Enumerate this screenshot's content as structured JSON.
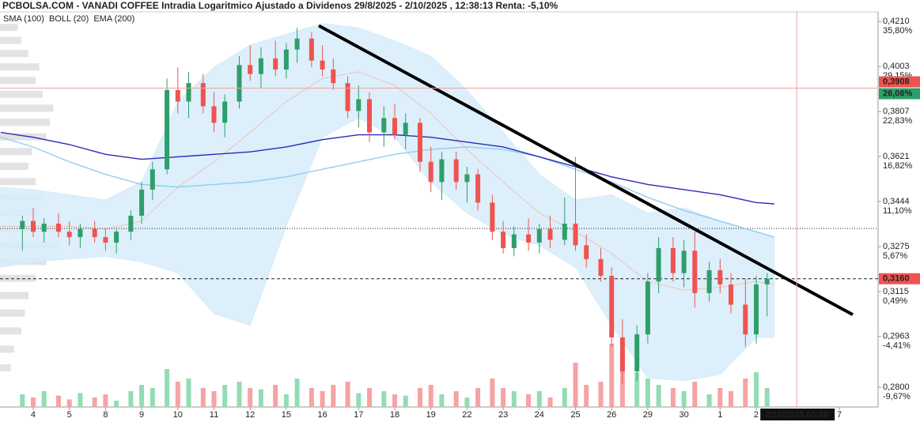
{
  "chart_data": {
    "type": "candlestick",
    "title": "PCBOLSA.COM - VANADI COFFEE Intradia Logaritmico Ajustado a Dividenos 29/8/2025 - 2/10/2025 , 12:38:13 Renta: -5,10%",
    "log_scale": true,
    "xlim": [
      -0.919,
      23.37
    ],
    "ylim": [
      0.2739,
      0.4255
    ],
    "up_color": "#2e9e6a",
    "down_color": "#ef5350",
    "volume_up_color": "#93dcb4",
    "volume_down_color": "#f5a3a3",
    "volume_lim": [
      0,
      100
    ],
    "xticks": [
      {
        "value": 0,
        "label": "4"
      },
      {
        "value": 1,
        "label": "5"
      },
      {
        "value": 2,
        "label": "8"
      },
      {
        "value": 3,
        "label": "9"
      },
      {
        "value": 4,
        "label": "10"
      },
      {
        "value": 5,
        "label": "11"
      },
      {
        "value": 6,
        "label": "12"
      },
      {
        "value": 7,
        "label": "15"
      },
      {
        "value": 8,
        "label": "16"
      },
      {
        "value": 9,
        "label": "17"
      },
      {
        "value": 10,
        "label": "18"
      },
      {
        "value": 11,
        "label": "19"
      },
      {
        "value": 12,
        "label": "22"
      },
      {
        "value": 13,
        "label": "23"
      },
      {
        "value": 14,
        "label": "24"
      },
      {
        "value": 15,
        "label": "25"
      },
      {
        "value": 16,
        "label": "26"
      },
      {
        "value": 17,
        "label": "29"
      },
      {
        "value": 18,
        "label": "30"
      },
      {
        "value": 19,
        "label": "1"
      },
      {
        "value": 20,
        "label": "2"
      },
      {
        "value": 22.3,
        "label": "7"
      }
    ],
    "yticks": [
      {
        "value": 0.421,
        "label": "0,4210",
        "pct": "35,80%"
      },
      {
        "value": 0.4003,
        "label": "0,4003",
        "pct": "29,15%"
      },
      {
        "value": 0.3807,
        "label": "0,3807",
        "pct": "22,83%"
      },
      {
        "value": 0.3621,
        "label": "0,3621",
        "pct": "16,82%"
      },
      {
        "value": 0.3444,
        "label": "0,3444",
        "pct": "11,10%"
      },
      {
        "value": 0.3275,
        "label": "0,3275",
        "pct": "5,67%"
      },
      {
        "value": 0.3115,
        "label": "0,3115",
        "pct": "0,49%"
      },
      {
        "value": 0.2963,
        "label": "0,2963",
        "pct": "-4,41%"
      },
      {
        "value": 0.28,
        "label": "0,2800",
        "pct": "-9,67%"
      }
    ],
    "x": [
      -0.3,
      0,
      0.3,
      0.7,
      1,
      1.3,
      1.7,
      2,
      2.3,
      2.7,
      3,
      3.3,
      3.7,
      4,
      4.3,
      4.7,
      5,
      5.3,
      5.7,
      6,
      6.3,
      6.7,
      7,
      7.3,
      7.7,
      8,
      8.3,
      8.7,
      9,
      9.3,
      9.7,
      10,
      10.3,
      10.7,
      11,
      11.3,
      11.7,
      12,
      12.3,
      12.7,
      13,
      13.3,
      13.7,
      14,
      14.3,
      14.7,
      15,
      15.3,
      15.7,
      16,
      16.3,
      16.7,
      17,
      17.3,
      17.7,
      18,
      18.3,
      18.7,
      19,
      19.3,
      19.7,
      20,
      20.3
    ],
    "open": [
      0.334,
      0.337,
      0.333,
      0.336,
      0.333,
      0.331,
      0.334,
      0.331,
      0.329,
      0.333,
      0.339,
      0.349,
      0.357,
      0.39,
      0.385,
      0.393,
      0.383,
      0.376,
      0.385,
      0.401,
      0.397,
      0.404,
      0.399,
      0.408,
      0.413,
      0.403,
      0.399,
      0.393,
      0.381,
      0.386,
      0.372,
      0.378,
      0.371,
      0.376,
      0.36,
      0.352,
      0.361,
      0.352,
      0.355,
      0.344,
      0.333,
      0.327,
      0.332,
      0.329,
      0.334,
      0.33,
      0.336,
      0.328,
      0.323,
      0.317,
      0.296,
      0.285,
      0.297,
      0.315,
      0.327,
      0.318,
      0.326,
      0.311,
      0.319,
      0.314,
      0.307,
      0.297,
      0.314
    ],
    "high": [
      0.339,
      0.342,
      0.338,
      0.34,
      0.337,
      0.336,
      0.337,
      0.334,
      0.334,
      0.341,
      0.352,
      0.36,
      0.395,
      0.4,
      0.398,
      0.397,
      0.389,
      0.388,
      0.405,
      0.41,
      0.409,
      0.412,
      0.411,
      0.418,
      0.416,
      0.41,
      0.404,
      0.396,
      0.392,
      0.389,
      0.383,
      0.384,
      0.38,
      0.378,
      0.366,
      0.364,
      0.364,
      0.358,
      0.357,
      0.347,
      0.337,
      0.335,
      0.338,
      0.336,
      0.339,
      0.346,
      0.362,
      0.332,
      0.327,
      0.32,
      0.302,
      0.3,
      0.318,
      0.331,
      0.331,
      0.33,
      0.333,
      0.322,
      0.323,
      0.318,
      0.316,
      0.317,
      0.318
    ],
    "low": [
      0.326,
      0.331,
      0.329,
      0.331,
      0.328,
      0.327,
      0.329,
      0.326,
      0.325,
      0.33,
      0.336,
      0.345,
      0.355,
      0.38,
      0.378,
      0.38,
      0.372,
      0.37,
      0.382,
      0.394,
      0.391,
      0.396,
      0.395,
      0.402,
      0.4,
      0.396,
      0.39,
      0.378,
      0.374,
      0.368,
      0.366,
      0.369,
      0.365,
      0.356,
      0.348,
      0.345,
      0.349,
      0.344,
      0.341,
      0.33,
      0.325,
      0.324,
      0.326,
      0.325,
      0.327,
      0.328,
      0.326,
      0.32,
      0.315,
      0.293,
      0.281,
      0.282,
      0.294,
      0.311,
      0.315,
      0.313,
      0.306,
      0.308,
      0.311,
      0.304,
      0.293,
      0.294,
      0.303
    ],
    "close": [
      0.337,
      0.333,
      0.336,
      0.333,
      0.331,
      0.334,
      0.331,
      0.329,
      0.333,
      0.339,
      0.349,
      0.357,
      0.39,
      0.385,
      0.393,
      0.383,
      0.376,
      0.385,
      0.401,
      0.397,
      0.404,
      0.399,
      0.408,
      0.413,
      0.403,
      0.399,
      0.393,
      0.381,
      0.386,
      0.372,
      0.378,
      0.371,
      0.376,
      0.36,
      0.352,
      0.361,
      0.352,
      0.355,
      0.344,
      0.333,
      0.327,
      0.332,
      0.329,
      0.334,
      0.33,
      0.336,
      0.328,
      0.323,
      0.317,
      0.296,
      0.285,
      0.297,
      0.315,
      0.327,
      0.318,
      0.326,
      0.311,
      0.319,
      0.314,
      0.307,
      0.297,
      0.314,
      0.316
    ],
    "volume": [
      20,
      15,
      25,
      18,
      12,
      22,
      15,
      20,
      10,
      25,
      35,
      30,
      60,
      40,
      45,
      30,
      25,
      35,
      40,
      30,
      28,
      35,
      20,
      45,
      30,
      25,
      35,
      40,
      22,
      30,
      25,
      20,
      18,
      30,
      35,
      20,
      25,
      15,
      30,
      45,
      30,
      25,
      20,
      25,
      15,
      30,
      70,
      35,
      40,
      100,
      85,
      55,
      45,
      35,
      30,
      25,
      40,
      20,
      30,
      25,
      45,
      55,
      30
    ],
    "overlays": {
      "x": [
        -0.9,
        0,
        1,
        2,
        3,
        4,
        5,
        6,
        7,
        8,
        9,
        10,
        11,
        12,
        13,
        14,
        15,
        16,
        17,
        18,
        19,
        20,
        20.5
      ],
      "bollinger": {
        "name": "BOLL (20)",
        "color": "#b0b0b0",
        "fill": "#d6ecfa",
        "upper": [
          0.35,
          0.349,
          0.347,
          0.345,
          0.352,
          0.385,
          0.4,
          0.41,
          0.415,
          0.42,
          0.418,
          0.412,
          0.405,
          0.39,
          0.372,
          0.355,
          0.345,
          0.347,
          0.34,
          0.342,
          0.337,
          0.333,
          0.331
        ],
        "mid": [
          0.335,
          0.335,
          0.335,
          0.334,
          0.337,
          0.35,
          0.36,
          0.372,
          0.385,
          0.395,
          0.398,
          0.392,
          0.38,
          0.365,
          0.352,
          0.34,
          0.333,
          0.325,
          0.315,
          0.312,
          0.313,
          0.315,
          0.314
        ],
        "lower": [
          0.32,
          0.322,
          0.323,
          0.324,
          0.322,
          0.318,
          0.304,
          0.3,
          0.335,
          0.37,
          0.378,
          0.37,
          0.352,
          0.34,
          0.332,
          0.328,
          0.32,
          0.3,
          0.283,
          0.282,
          0.284,
          0.296,
          0.296
        ]
      },
      "series": [
        {
          "name": "SMA (100)",
          "color": "#8fcdf0",
          "values": [
            0.37,
            0.366,
            0.36,
            0.355,
            0.351,
            0.35,
            0.351,
            0.352,
            0.354,
            0.357,
            0.36,
            0.363,
            0.365,
            0.366,
            0.365,
            0.362,
            0.357,
            0.352,
            0.346,
            0.341,
            0.337,
            0.333,
            0.331
          ]
        },
        {
          "name": "EMA (200)",
          "color": "#2b2bb8",
          "values": [
            0.372,
            0.37,
            0.367,
            0.363,
            0.361,
            0.362,
            0.363,
            0.364,
            0.366,
            0.369,
            0.371,
            0.371,
            0.37,
            0.368,
            0.366,
            0.362,
            0.358,
            0.354,
            0.351,
            0.349,
            0.347,
            0.344,
            0.3435
          ]
        }
      ]
    },
    "trendline": {
      "x": [
        7.9,
        22.67
      ],
      "y": [
        0.419,
        0.3036
      ]
    },
    "levels": [
      {
        "value": 0.3342,
        "style": "dotted"
      },
      {
        "value": 0.316,
        "style": "dashed",
        "label": "0,3160"
      }
    ],
    "crosshair": {
      "x": 21.12,
      "x_label": "2/10/2025 05:26",
      "y": 0.3908,
      "y_label": "0,3908",
      "pct_label": "26,06%"
    },
    "volume_profile": {
      "color": "#e3e3e3",
      "lim": [
        0,
        100
      ],
      "prices": [
        0.418,
        0.412,
        0.406,
        0.4,
        0.394,
        0.388,
        0.382,
        0.376,
        0.37,
        0.364,
        0.358,
        0.352,
        0.346,
        0.34,
        0.334,
        0.328,
        0.322,
        0.316,
        0.31,
        0.304,
        0.298,
        0.292,
        0.286
      ],
      "values": [
        25,
        30,
        40,
        55,
        50,
        60,
        75,
        70,
        65,
        45,
        40,
        50,
        60,
        55,
        80,
        85,
        65,
        50,
        40,
        35,
        30,
        20,
        15
      ]
    }
  }
}
